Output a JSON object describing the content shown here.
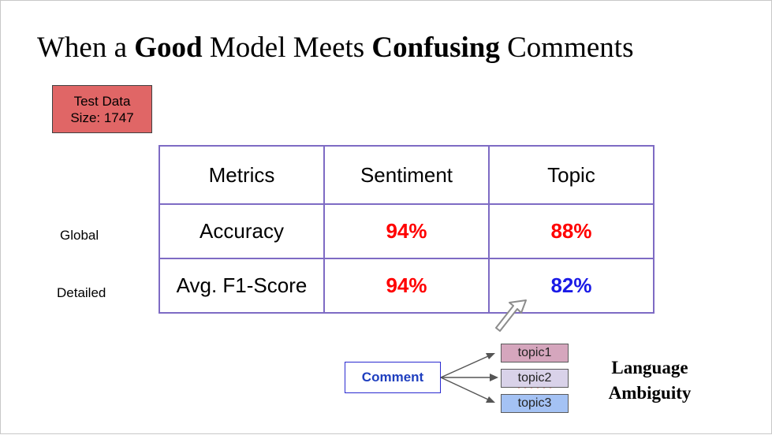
{
  "title": {
    "part1": "When a ",
    "bold1": "Good",
    "part2": " Model Meets ",
    "bold2": "Confusing",
    "part3": " Comments"
  },
  "test_data": {
    "line1": "Test Data",
    "line2": "Size: 1747"
  },
  "table": {
    "headers": [
      "Metrics",
      "Sentiment",
      "Topic"
    ],
    "rows": [
      {
        "side_label": "Global",
        "metric": "Accuracy",
        "sentiment": "94%",
        "topic": "88%"
      },
      {
        "side_label": "Detailed",
        "metric": "Avg. F1-Score",
        "sentiment": "94%",
        "topic": "82%"
      }
    ]
  },
  "diagram": {
    "comment_label": "Comment",
    "topics": [
      "topic1",
      "topic2",
      "topic3"
    ],
    "ambiguity_line1": "Language",
    "ambiguity_line2": "Ambiguity"
  },
  "colors": {
    "red_value": "#ff0000",
    "blue_value": "#1a1ae6",
    "test_data_fill": "#e06666",
    "table_border": "#7e6bc4",
    "topic1_fill": "#d5a6bd",
    "topic2_fill": "#d9d2e9",
    "topic3_fill": "#a4c2f4"
  }
}
